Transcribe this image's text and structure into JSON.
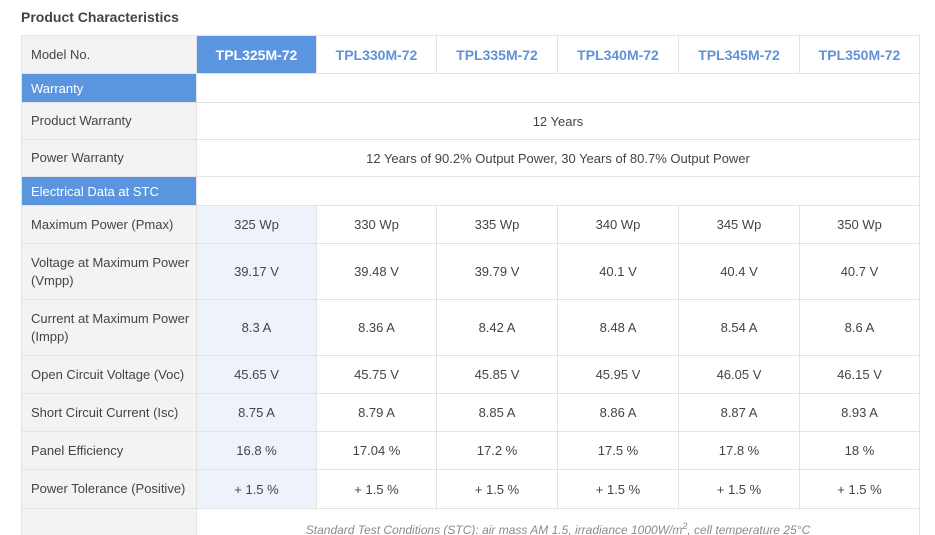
{
  "page": {
    "title": "Product Characteristics"
  },
  "table": {
    "model_label": "Model No.",
    "models": [
      "TPL325M-72",
      "TPL330M-72",
      "TPL335M-72",
      "TPL340M-72",
      "TPL345M-72",
      "TPL350M-72"
    ],
    "active_model": "TPL325M-72",
    "warranty": {
      "section_label": "Warranty",
      "product_warranty_label": "Product Warranty",
      "product_warranty_value": "12 Years",
      "power_warranty_label": "Power Warranty",
      "power_warranty_value": "12 Years of 90.2% Output Power, 30 Years of 80.7% Output Power"
    },
    "electrical": {
      "section_label": "Electrical Data at STC",
      "rows": [
        {
          "label": "Maximum Power (Pmax)",
          "values": [
            "325 Wp",
            "330 Wp",
            "335 Wp",
            "340 Wp",
            "345 Wp",
            "350 Wp"
          ]
        },
        {
          "label": "Voltage at Maximum Power (Vmpp)",
          "values": [
            "39.17 V",
            "39.48 V",
            "39.79 V",
            "40.1 V",
            "40.4 V",
            "40.7 V"
          ]
        },
        {
          "label": "Current at Maximum Power (Impp)",
          "values": [
            "8.3 A",
            "8.36 A",
            "8.42 A",
            "8.48 A",
            "8.54 A",
            "8.6 A"
          ]
        },
        {
          "label": "Open Circuit Voltage (Voc)",
          "values": [
            "45.65 V",
            "45.75 V",
            "45.85 V",
            "45.95 V",
            "46.05 V",
            "46.15 V"
          ]
        },
        {
          "label": "Short Circuit Current (Isc)",
          "values": [
            "8.75 A",
            "8.79 A",
            "8.85 A",
            "8.86 A",
            "8.87 A",
            "8.93 A"
          ]
        },
        {
          "label": "Panel Efficiency",
          "values": [
            "16.8 %",
            "17.04 %",
            "17.2 %",
            "17.5 %",
            "17.8 %",
            "18 %"
          ]
        },
        {
          "label": "Power Tolerance (Positive)",
          "values": [
            "+ 1.5 %",
            "+ 1.5 %",
            "+ 1.5 %",
            "+ 1.5 %",
            "+ 1.5 %",
            "+ 1.5 %"
          ]
        }
      ]
    },
    "footnote": {
      "before_sup": "Standard Test Conditions (STC): air mass AM 1.5, irradiance 1000W/m",
      "sup": "2",
      "after_sup": ", cell temperature 25°C"
    }
  },
  "colors": {
    "accent": "#5b95e0",
    "model_link": "#5e92d9",
    "label_bg": "#f3f3f3",
    "highlight_bg": "#eef3fb",
    "border": "#e3e3e3"
  }
}
